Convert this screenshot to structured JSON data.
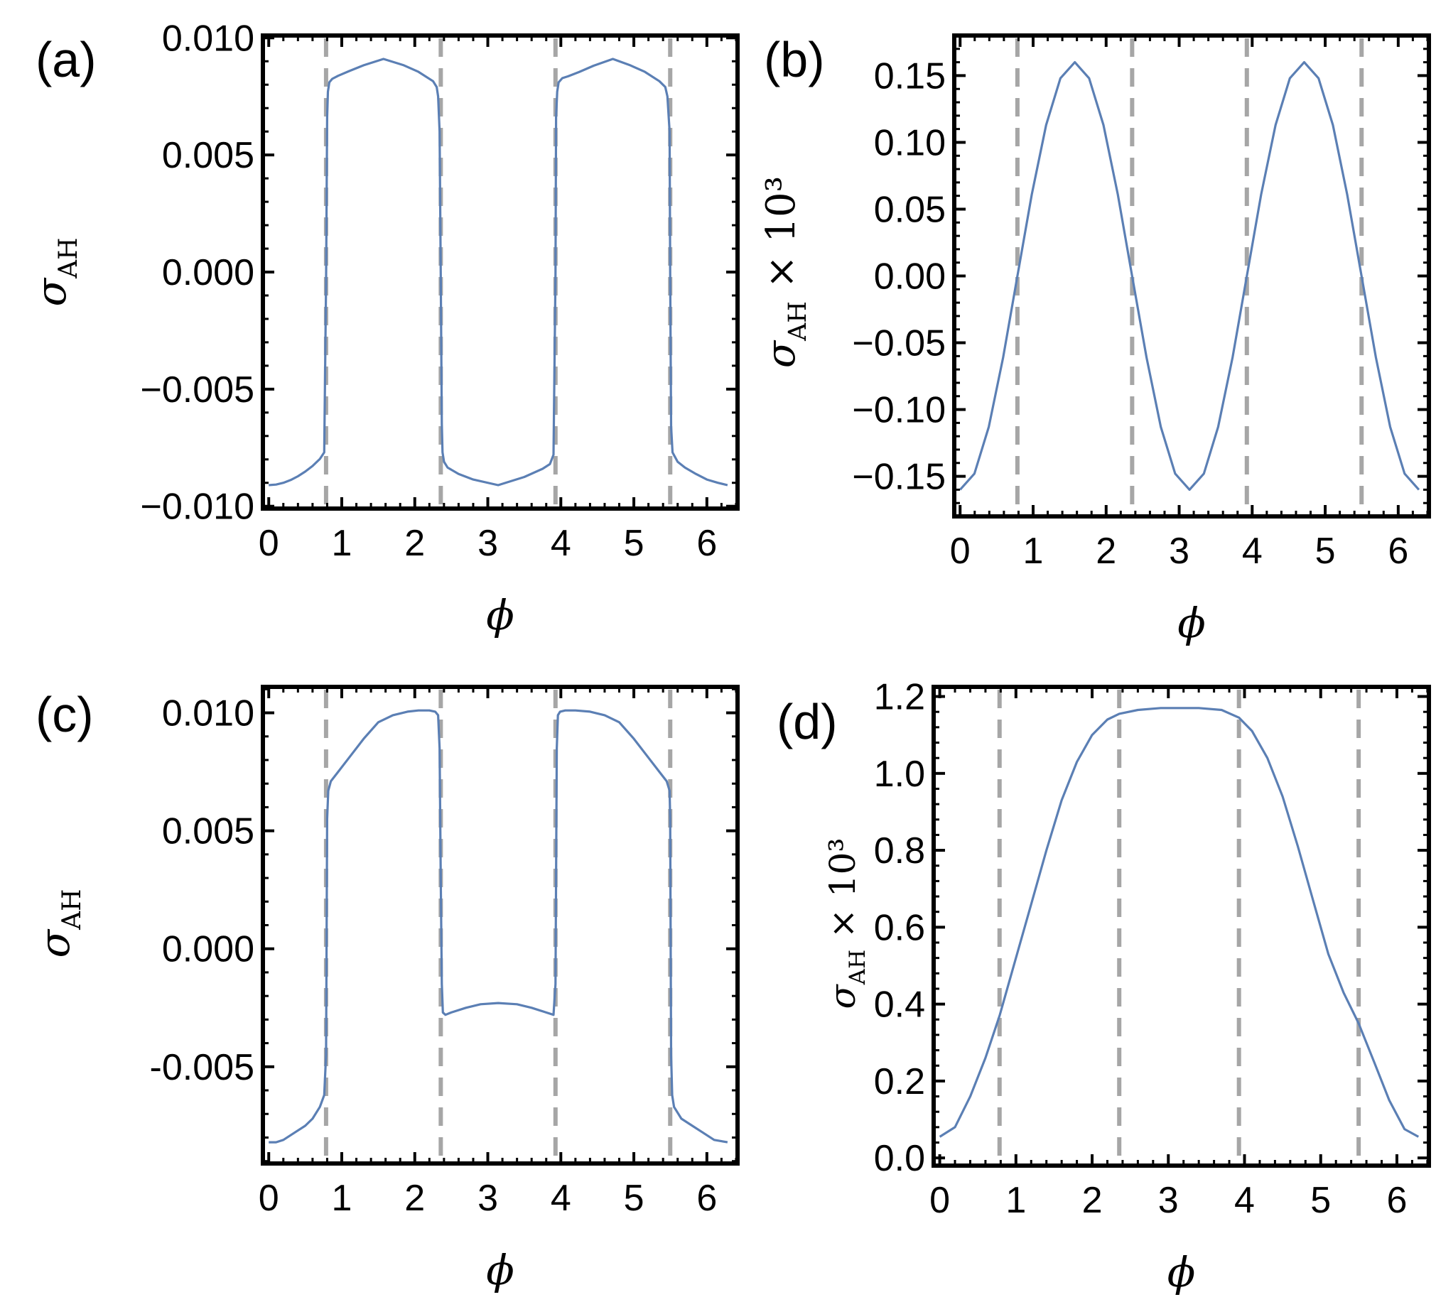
{
  "figure": {
    "colors": {
      "curve": "#5b7fb4",
      "dashed": "#a6a6a6",
      "frame": "#000000"
    }
  },
  "chart_data": [
    {
      "panel": "(a)",
      "type": "line",
      "ylabel_symbol": "σ",
      "ylabel_sub": "AH",
      "ylabel_suffix": "",
      "xlabel": "ϕ",
      "xlim": [
        -0.08,
        6.42
      ],
      "ylim": [
        -0.0101,
        0.0101
      ],
      "xticks": [
        0,
        1,
        2,
        3,
        4,
        5,
        6
      ],
      "xtick_labels": [
        "0",
        "1",
        "2",
        "3",
        "4",
        "5",
        "6"
      ],
      "yticks": [
        -0.01,
        -0.005,
        0,
        0.005,
        0.01
      ],
      "ytick_labels": [
        "−0.010",
        "−0.005",
        "0.000",
        "0.005",
        "0.010"
      ],
      "vertical_dashed_lines": [
        0.785,
        2.356,
        3.927,
        5.498
      ],
      "x": [
        0,
        0.1,
        0.2,
        0.3,
        0.4,
        0.5,
        0.6,
        0.7,
        0.76,
        0.785,
        0.8,
        0.81,
        0.83,
        0.87,
        0.95,
        1.1,
        1.3,
        1.5708,
        1.85,
        2.05,
        2.25,
        2.3,
        2.32,
        2.34,
        2.356,
        2.37,
        2.38,
        2.4,
        2.45,
        2.6,
        2.8,
        3.1416,
        3.5,
        3.75,
        3.85,
        3.9,
        3.927,
        3.935,
        3.95,
        3.97,
        4.02,
        4.1,
        4.25,
        4.45,
        4.7124,
        4.95,
        5.15,
        5.35,
        5.43,
        5.46,
        5.49,
        5.498,
        5.51,
        5.53,
        5.6,
        5.7,
        5.85,
        6.0,
        6.15,
        6.283
      ],
      "y": [
        -0.0091,
        -0.009075,
        -0.009,
        -0.00888,
        -0.00872,
        -0.00852,
        -0.00828,
        -0.00798,
        -0.0077,
        -0.0005,
        0.0066,
        0.0077,
        0.0081,
        0.00825,
        0.00838,
        0.00858,
        0.00883,
        0.0091,
        0.00883,
        0.00855,
        0.00815,
        0.0079,
        0.0075,
        0.006,
        -0.0001,
        -0.0065,
        -0.0077,
        -0.0081,
        -0.00835,
        -0.00862,
        -0.00886,
        -0.0091,
        -0.00875,
        -0.0084,
        -0.0082,
        -0.0078,
        -0.0001,
        0.0066,
        0.0077,
        0.0081,
        0.00828,
        0.00836,
        0.00854,
        0.00881,
        0.0091,
        0.00883,
        0.00855,
        0.00815,
        0.0079,
        0.0075,
        0.006,
        -0.0001,
        -0.0066,
        -0.0077,
        -0.0081,
        -0.00835,
        -0.00862,
        -0.00886,
        -0.009,
        -0.0091
      ]
    },
    {
      "panel": "(b)",
      "type": "line",
      "ylabel_symbol": "σ",
      "ylabel_sub": "AH",
      "ylabel_suffix": " × 10³",
      "xlabel": "ϕ",
      "xlim": [
        -0.08,
        6.42
      ],
      "ylim": [
        -0.18,
        0.18
      ],
      "xticks": [
        0,
        1,
        2,
        3,
        4,
        5,
        6
      ],
      "xtick_labels": [
        "0",
        "1",
        "2",
        "3",
        "4",
        "5",
        "6"
      ],
      "yticks": [
        -0.15,
        -0.1,
        -0.05,
        0,
        0.05,
        0.1,
        0.15
      ],
      "ytick_labels": [
        "−0.15",
        "−0.10",
        "−0.05",
        "0.00",
        "0.05",
        "0.10",
        "0.15"
      ],
      "vertical_dashed_lines": [
        0.785,
        2.356,
        3.927,
        5.498
      ],
      "x": [
        0,
        0.196,
        0.393,
        0.589,
        0.785,
        0.982,
        1.178,
        1.374,
        1.571,
        1.767,
        1.963,
        2.16,
        2.356,
        2.553,
        2.749,
        2.945,
        3.142,
        3.338,
        3.534,
        3.731,
        3.927,
        4.123,
        4.32,
        4.516,
        4.712,
        4.909,
        5.105,
        5.301,
        5.498,
        5.694,
        5.89,
        6.087,
        6.283
      ],
      "y": [
        -0.16,
        -0.148,
        -0.113,
        -0.061,
        0.0,
        0.061,
        0.113,
        0.148,
        0.16,
        0.148,
        0.113,
        0.061,
        0.0,
        -0.061,
        -0.113,
        -0.148,
        -0.16,
        -0.148,
        -0.113,
        -0.061,
        0.0,
        0.061,
        0.113,
        0.148,
        0.16,
        0.148,
        0.113,
        0.061,
        0.0,
        -0.061,
        -0.113,
        -0.148,
        -0.16
      ]
    },
    {
      "panel": "(c)",
      "type": "line",
      "ylabel_symbol": "σ",
      "ylabel_sub": "AH",
      "ylabel_suffix": "",
      "xlabel": "ϕ",
      "xlim": [
        -0.08,
        6.42
      ],
      "ylim": [
        -0.0091,
        0.0111
      ],
      "xticks": [
        0,
        1,
        2,
        3,
        4,
        5,
        6
      ],
      "xtick_labels": [
        "0",
        "1",
        "2",
        "3",
        "4",
        "5",
        "6"
      ],
      "yticks": [
        -0.005,
        0,
        0.005,
        0.01
      ],
      "ytick_labels": [
        "-0.005",
        "0.000",
        "0.005",
        "0.010"
      ],
      "vertical_dashed_lines": [
        0.785,
        2.356,
        3.927,
        5.498
      ],
      "x": [
        0,
        0.1,
        0.2,
        0.35,
        0.5,
        0.6,
        0.7,
        0.76,
        0.785,
        0.8,
        0.815,
        0.85,
        0.95,
        1.1,
        1.3,
        1.5,
        1.7,
        1.9,
        2.05,
        2.2,
        2.28,
        2.32,
        2.34,
        2.356,
        2.37,
        2.385,
        2.42,
        2.5,
        2.7,
        2.9,
        3.1416,
        3.4,
        3.6,
        3.8,
        3.9,
        3.927,
        3.945,
        3.96,
        3.99,
        4.06,
        4.2,
        4.4,
        4.6,
        4.8,
        5.0,
        5.2,
        5.35,
        5.45,
        5.49,
        5.498,
        5.51,
        5.525,
        5.55,
        5.65,
        5.8,
        5.95,
        6.1,
        6.283
      ],
      "y": [
        -0.0082,
        -0.0082,
        -0.0081,
        -0.0078,
        -0.0075,
        -0.0072,
        -0.0067,
        -0.0062,
        -0.0045,
        0.0055,
        0.0067,
        0.0071,
        0.0075,
        0.0081,
        0.0089,
        0.0096,
        0.0099,
        0.01005,
        0.0101,
        0.0101,
        0.01005,
        0.0099,
        0.0085,
        0.003,
        -0.0015,
        -0.0027,
        -0.0028,
        -0.0027,
        -0.0025,
        -0.00235,
        -0.0023,
        -0.00235,
        -0.0025,
        -0.0027,
        -0.0028,
        -0.0015,
        0.0085,
        0.0099,
        0.01005,
        0.0101,
        0.0101,
        0.01005,
        0.0099,
        0.0096,
        0.0089,
        0.0081,
        0.0075,
        0.0071,
        0.0067,
        0.0055,
        -0.0045,
        -0.0062,
        -0.0067,
        -0.0072,
        -0.0075,
        -0.0078,
        -0.0081,
        -0.0082
      ]
    },
    {
      "panel": "(d)",
      "type": "line",
      "ylabel_symbol": "σ",
      "ylabel_sub": "AH",
      "ylabel_suffix": " × 10³",
      "xlabel": "ϕ",
      "xlim": [
        -0.08,
        6.42
      ],
      "ylim": [
        -0.02,
        1.225
      ],
      "xticks": [
        0,
        1,
        2,
        3,
        4,
        5,
        6
      ],
      "xtick_labels": [
        "0",
        "1",
        "2",
        "3",
        "4",
        "5",
        "6"
      ],
      "yticks": [
        0,
        0.2,
        0.4,
        0.6,
        0.8,
        1.0,
        1.2
      ],
      "ytick_labels": [
        "0.0",
        "0.2",
        "0.4",
        "0.6",
        "0.8",
        "1.0",
        "1.2"
      ],
      "vertical_dashed_lines": [
        0.785,
        2.356,
        3.927,
        5.498
      ],
      "x": [
        0,
        0.2,
        0.4,
        0.6,
        0.785,
        1.0,
        1.2,
        1.4,
        1.6,
        1.8,
        2.0,
        2.2,
        2.356,
        2.6,
        2.9,
        3.1416,
        3.4,
        3.7,
        3.927,
        4.1,
        4.3,
        4.5,
        4.7,
        4.9,
        5.1,
        5.3,
        5.498,
        5.7,
        5.9,
        6.1,
        6.283
      ],
      "y": [
        0.055,
        0.08,
        0.16,
        0.26,
        0.37,
        0.52,
        0.66,
        0.8,
        0.93,
        1.03,
        1.1,
        1.14,
        1.155,
        1.165,
        1.17,
        1.17,
        1.17,
        1.165,
        1.145,
        1.11,
        1.04,
        0.94,
        0.81,
        0.67,
        0.53,
        0.43,
        0.35,
        0.25,
        0.15,
        0.075,
        0.055
      ]
    }
  ]
}
